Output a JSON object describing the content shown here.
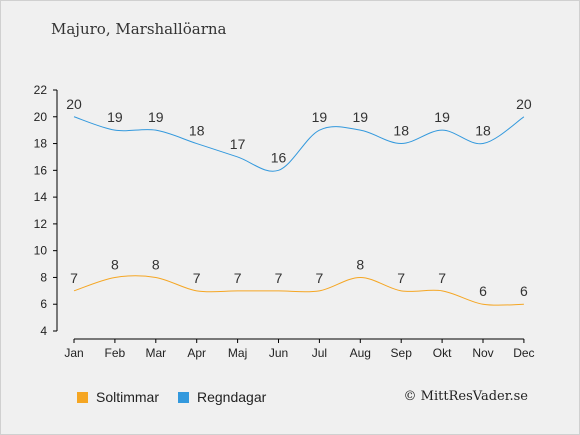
{
  "header": {
    "title": "Majuro, Marshallöarna"
  },
  "footer": {
    "copyright": "© MittResVader.se"
  },
  "colors": {
    "sun": "#f5a623",
    "rain": "#3399dd",
    "axis": "#000000"
  },
  "chart_data": {
    "type": "line",
    "categories": [
      "Jan",
      "Feb",
      "Mar",
      "Apr",
      "Maj",
      "Jun",
      "Jul",
      "Aug",
      "Sep",
      "Okt",
      "Nov",
      "Dec"
    ],
    "ylim": [
      4,
      22
    ],
    "yticks": [
      4,
      6,
      8,
      10,
      12,
      14,
      16,
      18,
      20,
      22
    ],
    "grid": false,
    "legend_placement": "bottom-left",
    "series": [
      {
        "name": "Soltimmar",
        "color": "#f5a623",
        "values": [
          7,
          8,
          8,
          7,
          7,
          7,
          7,
          8,
          7,
          7,
          6,
          6
        ]
      },
      {
        "name": "Regndagar",
        "color": "#3399dd",
        "values": [
          20,
          19,
          19,
          18,
          17,
          16,
          19,
          19,
          18,
          19,
          18,
          20
        ]
      }
    ]
  }
}
